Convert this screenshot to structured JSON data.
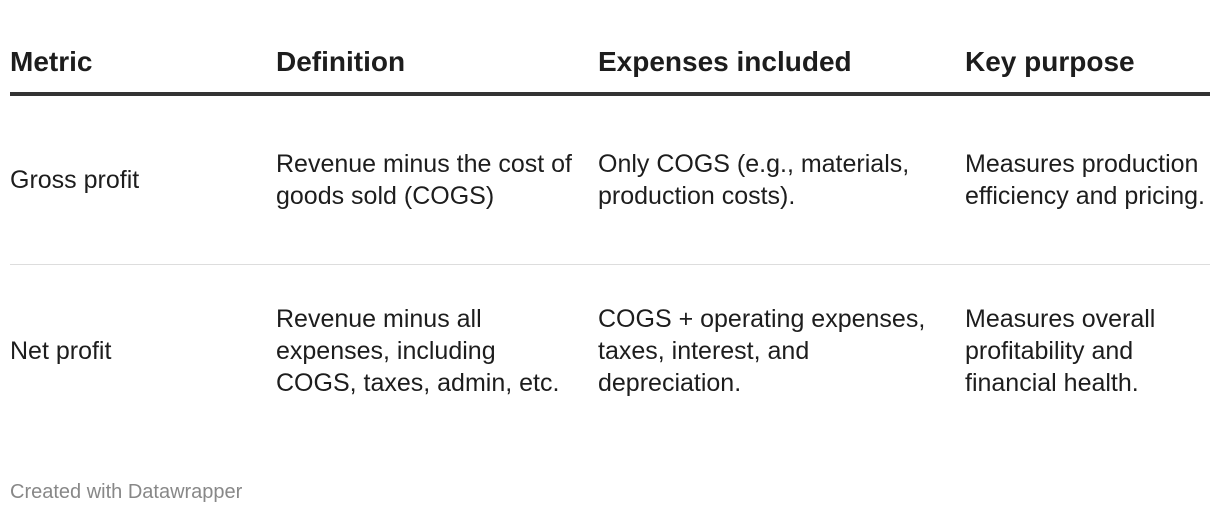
{
  "table": {
    "headers": [
      "Metric",
      "Definition",
      "Expenses included",
      "Key purpose"
    ],
    "rows": [
      {
        "metric": "Gross profit",
        "definition": "Revenue minus the cost of goods sold (COGS)",
        "expenses": "Only COGS (e.g., materials, production costs).",
        "purpose": "Measures production efficiency and pricing."
      },
      {
        "metric": "Net profit",
        "definition": "Revenue minus all expenses, including COGS, taxes, admin, etc.",
        "expenses": "COGS + operating expenses, taxes, interest, and depreciation.",
        "purpose": "Measures overall profitability and financial health."
      }
    ]
  },
  "chart_data": {
    "type": "table",
    "columns": [
      "Metric",
      "Definition",
      "Expenses included",
      "Key purpose"
    ],
    "rows": [
      [
        "Gross profit",
        "Revenue minus the cost of goods sold (COGS)",
        "Only COGS (e.g., materials, production costs).",
        "Measures production efficiency and pricing."
      ],
      [
        "Net profit",
        "Revenue minus all expenses, including COGS, taxes, admin, etc.",
        "COGS + operating expenses, taxes, interest, and depreciation.",
        "Measures overall profitability and financial health."
      ]
    ]
  },
  "footer": {
    "credit": "Created with Datawrapper"
  }
}
